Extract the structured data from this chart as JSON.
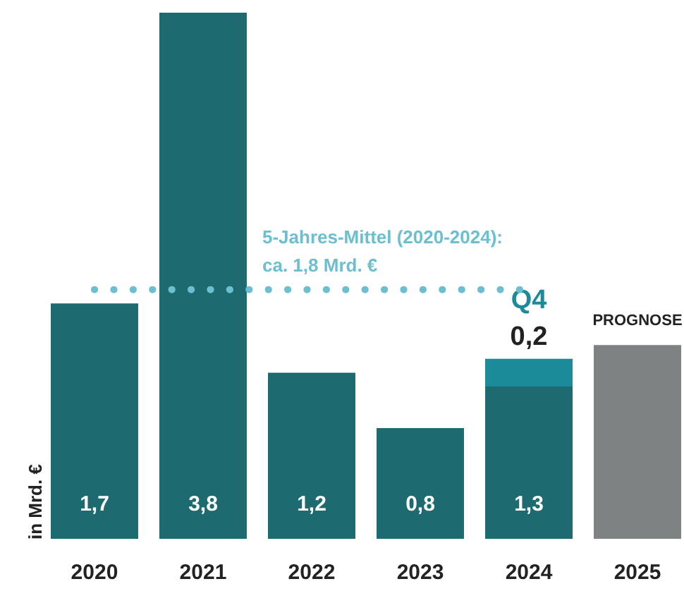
{
  "chart_data": {
    "type": "bar",
    "stacked": true,
    "ylabel": "in Mrd. €",
    "categories": [
      "2020",
      "2021",
      "2022",
      "2023",
      "2024",
      "2025"
    ],
    "series": [
      {
        "colors": [
          "#1d6b70",
          "#1d6b70",
          "#1d6b70",
          "#1d6b70",
          "#1d6b70",
          "#7f8283"
        ],
        "values": [
          1.7,
          3.8,
          1.2,
          0.8,
          1.1,
          1.4
        ]
      },
      {
        "name": "Q4",
        "color": "#1b8a99",
        "values": [
          null,
          null,
          null,
          null,
          0.2,
          null
        ],
        "value_labels": [
          null,
          null,
          null,
          null,
          "0,2",
          null
        ]
      }
    ],
    "totals": [
      "1,7",
      "3,8",
      "1,2",
      "0,8",
      "1,3",
      null
    ],
    "ref_lines": [
      {
        "axis": "y",
        "value": 1.8,
        "label": "5-Jahres-Mittel (2020-2024):\nca. 1,8 Mrd. €",
        "color": "#6cbfcf",
        "line_style": "dotted"
      }
    ],
    "annotations": [
      {
        "text": "PROGNOSE",
        "x": "2025",
        "y": 1.4
      }
    ]
  }
}
